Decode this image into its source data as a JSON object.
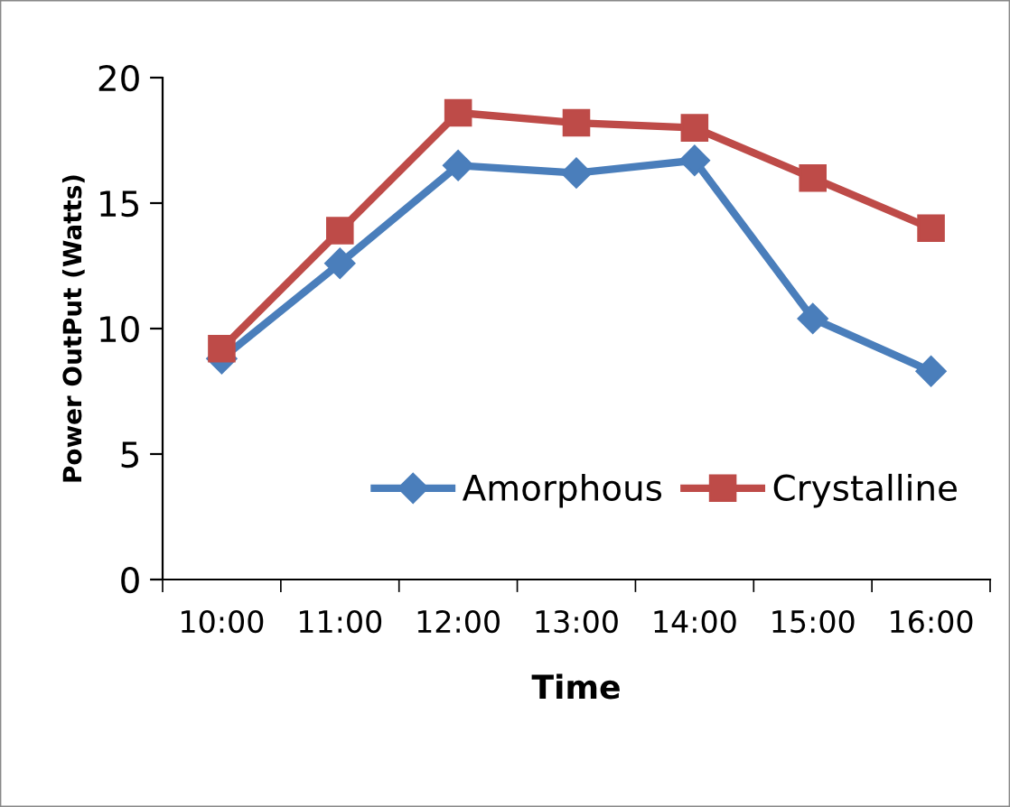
{
  "chart_data": {
    "type": "line",
    "xlabel": "Time",
    "ylabel": "Power OutPut (Watts)",
    "categories": [
      "10:00",
      "11:00",
      "12:00",
      "13:00",
      "14:00",
      "15:00",
      "16:00"
    ],
    "series": [
      {
        "name": "Amorphous",
        "color": "#4a7ebb",
        "marker": "diamond",
        "values": [
          8.8,
          12.6,
          16.5,
          16.2,
          16.7,
          10.4,
          8.3
        ]
      },
      {
        "name": "Crystalline",
        "color": "#be4b48",
        "marker": "square",
        "values": [
          9.2,
          13.9,
          18.6,
          18.2,
          18.0,
          16.0,
          14.0
        ]
      }
    ],
    "ylim": [
      0,
      20
    ],
    "yticks": [
      0,
      5,
      10,
      15,
      20
    ],
    "grid": false,
    "legend": "bottom right",
    "line_style": "solid"
  }
}
